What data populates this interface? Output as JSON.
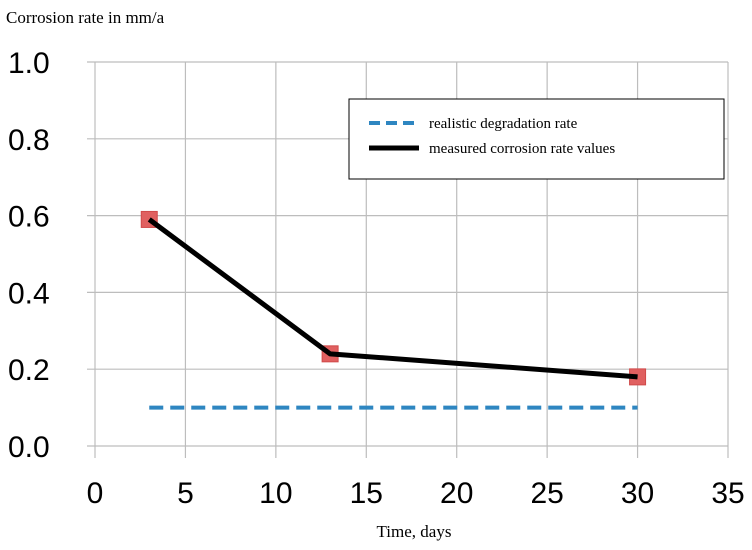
{
  "chart_data": {
    "type": "line",
    "title": "",
    "ylabel": "Corrosion rate in mm/a",
    "xlabel": "Time, days",
    "xlim": [
      0,
      35
    ],
    "ylim": [
      0,
      1.0
    ],
    "x_ticks": [
      0,
      5,
      10,
      15,
      20,
      25,
      30,
      35
    ],
    "y_ticks": [
      0.0,
      0.2,
      0.4,
      0.6,
      0.8,
      1.0
    ],
    "y_tick_labels": [
      "0.0",
      "0.2",
      "0.4",
      "0.6",
      "0.8",
      "1.0"
    ],
    "grid": "vertical-and-horizontal",
    "legend_position": "top-right",
    "series": [
      {
        "name": "realistic degradation rate",
        "style": "dashed",
        "color": "#2e86c1",
        "x": [
          3,
          30
        ],
        "y": [
          0.1,
          0.1
        ]
      },
      {
        "name": "measured corrosion rate values",
        "style": "solid",
        "color": "#000000",
        "marker": "square",
        "marker_color": "#e06060",
        "x": [
          3,
          13,
          30
        ],
        "y": [
          0.59,
          0.24,
          0.18
        ]
      }
    ]
  }
}
